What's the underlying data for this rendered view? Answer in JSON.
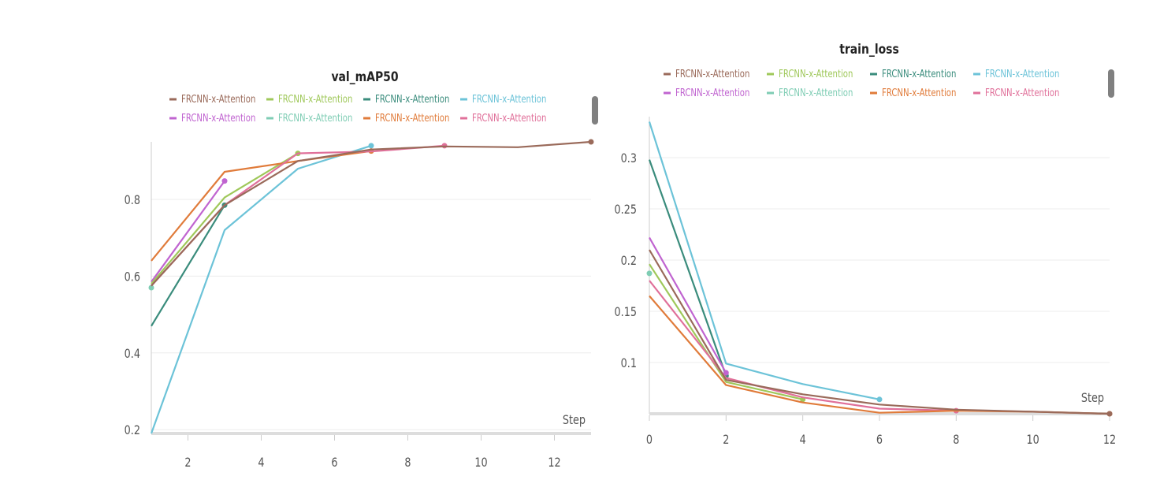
{
  "colors": {
    "brown": "#9a6a5a",
    "lime": "#9fc85a",
    "teal": "#3a8c7c",
    "sky": "#6cc3d8",
    "purple": "#c064d0",
    "mint": "#7fcdb4",
    "orange": "#e07b3a",
    "pink": "#e0709a",
    "grid": "#ececec",
    "axis": "#cccccc",
    "text": "#555555",
    "scroll": "#808080"
  },
  "chart_data": [
    {
      "type": "line",
      "title": "val_mAP50",
      "xlabel": "Step",
      "ylabel": "",
      "xlim": [
        1,
        13
      ],
      "ylim": [
        0.19,
        0.95
      ],
      "xticks": [
        2,
        4,
        6,
        8,
        10,
        12
      ],
      "yticks": [
        0.2,
        0.4,
        0.6,
        0.8
      ],
      "ytick_labels": [
        "0.2",
        "0.4",
        "0.6",
        "0.8"
      ],
      "grid": true,
      "legend_position": "top",
      "legend": [
        {
          "label": "FRCNN-x-Attention",
          "color": "#9a6a5a"
        },
        {
          "label": "FRCNN-x-Attention",
          "color": "#9fc85a"
        },
        {
          "label": "FRCNN-x-Attention",
          "color": "#3a8c7c"
        },
        {
          "label": "FRCNN-x-Attention",
          "color": "#6cc3d8"
        },
        {
          "label": "FRCNN-x-Attention",
          "color": "#c064d0"
        },
        {
          "label": "FRCNN-x-Attention",
          "color": "#7fcdb4"
        },
        {
          "label": "FRCNN-x-Attention",
          "color": "#e07b3a"
        },
        {
          "label": "FRCNN-x-Attention",
          "color": "#e0709a"
        }
      ],
      "series": [
        {
          "color": "#6cc3d8",
          "x": [
            1,
            3,
            5,
            7
          ],
          "y": [
            0.19,
            0.72,
            0.88,
            0.94
          ],
          "end_marker": true
        },
        {
          "color": "#3a8c7c",
          "x": [
            1,
            3
          ],
          "y": [
            0.47,
            0.785
          ],
          "end_marker": true
        },
        {
          "color": "#7fcdb4",
          "x": [
            1
          ],
          "y": [
            0.57
          ],
          "end_marker": true
        },
        {
          "color": "#c064d0",
          "x": [
            1,
            3
          ],
          "y": [
            0.585,
            0.848
          ],
          "end_marker": true
        },
        {
          "color": "#9fc85a",
          "x": [
            1,
            3,
            5
          ],
          "y": [
            0.58,
            0.805,
            0.92
          ],
          "end_marker": true
        },
        {
          "color": "#e07b3a",
          "x": [
            1,
            3,
            5,
            7
          ],
          "y": [
            0.64,
            0.872,
            0.9,
            0.926
          ],
          "end_marker": true
        },
        {
          "color": "#e0709a",
          "x": [
            1,
            3,
            5,
            7,
            9
          ],
          "y": [
            0.575,
            0.785,
            0.92,
            0.925,
            0.94
          ],
          "end_marker": true
        },
        {
          "color": "#9a6a5a",
          "x": [
            1,
            3,
            5,
            7,
            9,
            11,
            13
          ],
          "y": [
            0.575,
            0.785,
            0.9,
            0.93,
            0.938,
            0.936,
            0.95
          ],
          "end_marker": true
        }
      ]
    },
    {
      "type": "line",
      "title": "train_loss",
      "xlabel": "Step",
      "ylabel": "",
      "xlim": [
        0,
        12
      ],
      "ylim": [
        0.05,
        0.34
      ],
      "xticks": [
        0,
        2,
        4,
        6,
        8,
        10,
        12
      ],
      "yticks": [
        0.1,
        0.15,
        0.2,
        0.25,
        0.3
      ],
      "ytick_labels": [
        "0.1",
        "0.15",
        "0.2",
        "0.25",
        "0.3"
      ],
      "grid": true,
      "legend_position": "top",
      "legend": [
        {
          "label": "FRCNN-x-Attention",
          "color": "#9a6a5a"
        },
        {
          "label": "FRCNN-x-Attention",
          "color": "#9fc85a"
        },
        {
          "label": "FRCNN-x-Attention",
          "color": "#3a8c7c"
        },
        {
          "label": "FRCNN-x-Attention",
          "color": "#6cc3d8"
        },
        {
          "label": "FRCNN-x-Attention",
          "color": "#c064d0"
        },
        {
          "label": "FRCNN-x-Attention",
          "color": "#7fcdb4"
        },
        {
          "label": "FRCNN-x-Attention",
          "color": "#e07b3a"
        },
        {
          "label": "FRCNN-x-Attention",
          "color": "#e0709a"
        }
      ],
      "series": [
        {
          "color": "#6cc3d8",
          "x": [
            0,
            2,
            4,
            6
          ],
          "y": [
            0.335,
            0.099,
            0.079,
            0.064
          ],
          "end_marker": true
        },
        {
          "color": "#3a8c7c",
          "x": [
            0,
            2
          ],
          "y": [
            0.298,
            0.087
          ],
          "end_marker": true
        },
        {
          "color": "#7fcdb4",
          "x": [
            0
          ],
          "y": [
            0.187
          ],
          "end_marker": true
        },
        {
          "color": "#c064d0",
          "x": [
            0,
            2
          ],
          "y": [
            0.222,
            0.09
          ],
          "end_marker": true
        },
        {
          "color": "#9fc85a",
          "x": [
            0,
            2,
            4
          ],
          "y": [
            0.196,
            0.081,
            0.064
          ],
          "end_marker": true
        },
        {
          "color": "#e0709a",
          "x": [
            0,
            2,
            4,
            6,
            8
          ],
          "y": [
            0.18,
            0.085,
            0.066,
            0.055,
            0.053
          ],
          "end_marker": true
        },
        {
          "color": "#e07b3a",
          "x": [
            0,
            2,
            4,
            6,
            8,
            10,
            12
          ],
          "y": [
            0.165,
            0.078,
            0.061,
            0.051,
            0.053,
            0.052,
            0.05
          ],
          "end_marker": true
        },
        {
          "color": "#9a6a5a",
          "x": [
            0,
            2,
            4,
            6,
            8,
            10,
            12
          ],
          "y": [
            0.21,
            0.083,
            0.069,
            0.059,
            0.054,
            0.052,
            0.05
          ],
          "end_marker": true
        }
      ]
    }
  ]
}
